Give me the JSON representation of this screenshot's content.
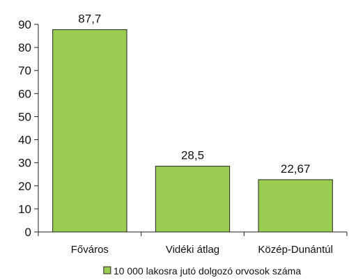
{
  "chart_data": {
    "type": "bar",
    "categories": [
      "Főváros",
      "Vidéki átlag",
      "Közép-Dunántúl"
    ],
    "series": [
      {
        "name": "10 000 lakosra jutó dolgozó orvosok száma",
        "values": [
          87.7,
          28.5,
          22.67
        ],
        "value_labels": [
          "87,7",
          "28,5",
          "22,67"
        ],
        "color": "#9acd52"
      }
    ],
    "ylim": [
      0,
      90
    ],
    "yticks": [
      0,
      10,
      20,
      30,
      40,
      50,
      60,
      70,
      80,
      90
    ],
    "grid": false,
    "legend_position": "bottom",
    "bar_outline_color": "#222222",
    "axis_color": "#222222"
  }
}
